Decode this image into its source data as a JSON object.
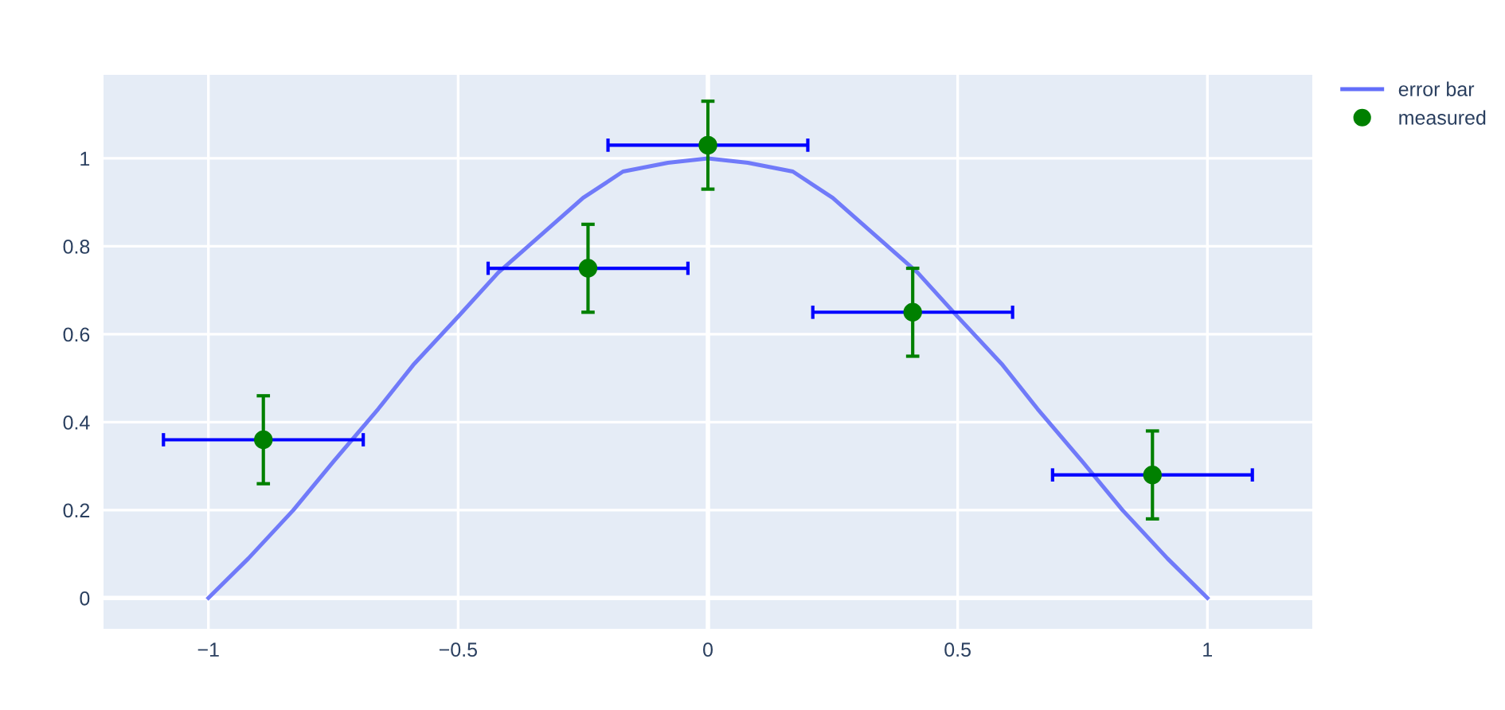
{
  "chart_data": {
    "type": "line",
    "xlim": [
      -1.21,
      1.21
    ],
    "ylim": [
      -0.07,
      1.19
    ],
    "xticks": [
      {
        "value": -1,
        "label": "−1"
      },
      {
        "value": -0.5,
        "label": "−0.5"
      },
      0,
      0.5,
      1
    ],
    "yticks": [
      0,
      0.2,
      0.4,
      0.6,
      0.8,
      1
    ],
    "grid": true,
    "legend": "top right",
    "series": [
      {
        "name": "error bar",
        "color": "#636efa",
        "marker": "none",
        "x": [
          -1,
          -0.92,
          -0.83,
          -0.75,
          -0.66,
          -0.59,
          -0.5,
          -0.42,
          -0.33,
          -0.25,
          -0.17,
          -0.08,
          0,
          0.08,
          0.17,
          0.25,
          0.33,
          0.42,
          0.5,
          0.59,
          0.66,
          0.75,
          0.83,
          0.92,
          1
        ],
        "values": [
          0,
          0.09,
          0.2,
          0.31,
          0.43,
          0.53,
          0.64,
          0.74,
          0.83,
          0.91,
          0.97,
          0.99,
          1,
          0.99,
          0.97,
          0.91,
          0.83,
          0.74,
          0.64,
          0.53,
          0.43,
          0.31,
          0.2,
          0.09,
          0
        ]
      },
      {
        "name": "measured",
        "type": "scatter",
        "color": "#008000",
        "marker": "circle",
        "x": [
          -0.89,
          -0.24,
          0,
          0.41,
          0.89
        ],
        "values": [
          0.36,
          0.75,
          1.03,
          0.65,
          0.28
        ],
        "errors": [
          0.1,
          0.1,
          0.1,
          0.1,
          0.1
        ],
        "xerrors": [
          0.2,
          0.2,
          0.2,
          0.2,
          0.2
        ]
      }
    ]
  }
}
